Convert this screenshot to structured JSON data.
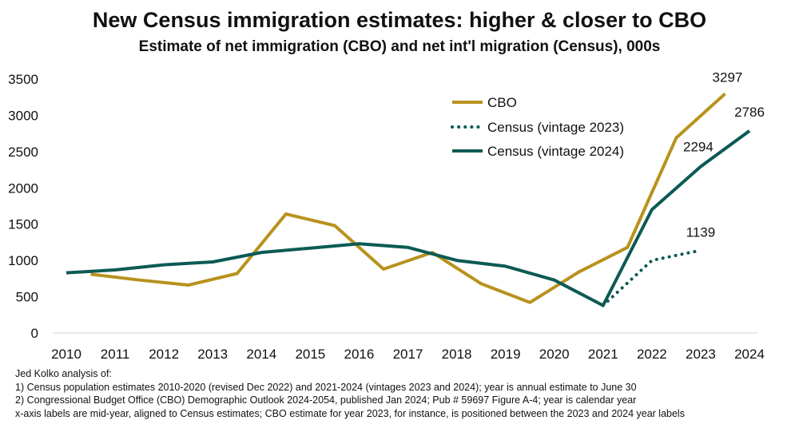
{
  "chart_data": {
    "type": "line",
    "title": "New Census immigration estimates: higher & closer to CBO",
    "subtitle": "Estimate of net immigration (CBO) and net int'l migration (Census), 000s",
    "xlabel": "",
    "ylabel": "",
    "ylim": [
      0,
      3500
    ],
    "yticks": [
      "0",
      "500",
      "1000",
      "1500",
      "2000",
      "2500",
      "3000",
      "3500"
    ],
    "xlim": [
      2010,
      2024
    ],
    "xticks": [
      "2010",
      "2011",
      "2012",
      "2013",
      "2014",
      "2015",
      "2016",
      "2017",
      "2018",
      "2019",
      "2020",
      "2021",
      "2022",
      "2023",
      "2024"
    ],
    "grid": false,
    "legend_position": "top-right",
    "series": [
      {
        "name": "CBO",
        "color": "#b8921d",
        "style": "solid",
        "x": [
          2010.5,
          2011.5,
          2012.5,
          2013.5,
          2014.5,
          2015.5,
          2016.5,
          2017.5,
          2018.5,
          2019.5,
          2020.5,
          2021.5,
          2022.5,
          2023.5
        ],
        "values": [
          810,
          730,
          660,
          820,
          1640,
          1480,
          880,
          1110,
          680,
          420,
          840,
          1180,
          2690,
          3297
        ]
      },
      {
        "name": "Census (vintage 2023)",
        "color": "#0c5a54",
        "style": "dotted",
        "x": [
          2021,
          2022,
          2023
        ],
        "values": [
          380,
          1000,
          1139
        ]
      },
      {
        "name": "Census (vintage 2024)",
        "color": "#0c5a54",
        "style": "solid",
        "x": [
          2010,
          2011,
          2012,
          2013,
          2014,
          2015,
          2016,
          2017,
          2018,
          2019,
          2020,
          2021,
          2022,
          2023,
          2024
        ],
        "values": [
          830,
          870,
          940,
          980,
          1110,
          1170,
          1230,
          1180,
          1000,
          920,
          730,
          380,
          1700,
          2294,
          2786
        ]
      }
    ],
    "annotations": [
      {
        "text": "3297",
        "x": 2023.5,
        "value": 3297
      },
      {
        "text": "2786",
        "x": 2024,
        "value": 2786
      },
      {
        "text": "2294",
        "x": 2023,
        "value": 2294
      },
      {
        "text": "1139",
        "x": 2023,
        "value": 1139
      }
    ]
  },
  "notes": {
    "line1": "Jed Kolko analysis of:",
    "line2": "1) Census population estimates 2010-2020 (revised Dec 2022) and 2021-2024 (vintages 2023 and 2024); year is annual estimate to June 30",
    "line3": "2) Congressional Budget Office (CBO) Demographic Outlook 2024-2054,  published Jan 2024; Pub # 59697 Figure A-4; year is calendar year",
    "line4": "x-axis labels are mid-year, aligned to Census estimates; CBO estimate for year 2023, for instance, is positioned between the 2023 and 2024 year labels"
  }
}
